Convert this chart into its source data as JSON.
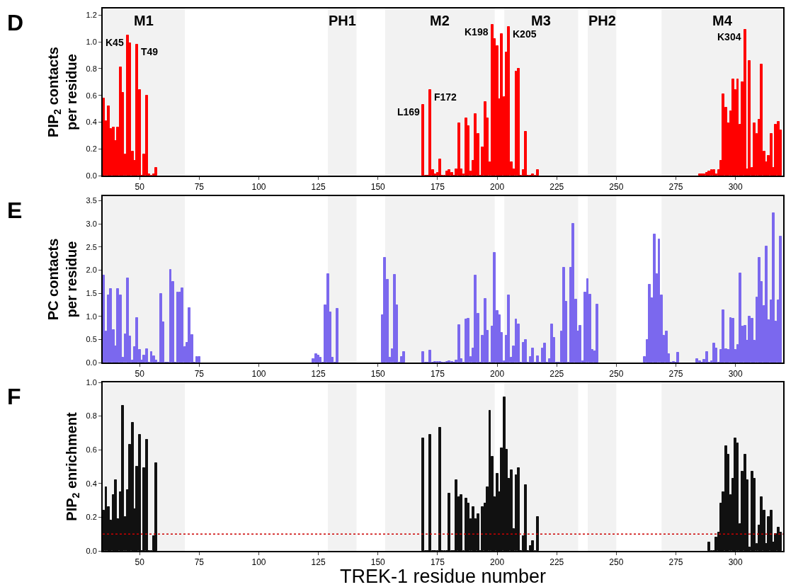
{
  "chart_data": [
    {
      "type": "bar",
      "title": "D",
      "ylabel": "PIP$_{2}$ contacts\nper residue",
      "xlim": [
        34.5,
        320
      ],
      "ylim": [
        0,
        1.25
      ],
      "xticks": [
        50,
        75,
        100,
        125,
        150,
        175,
        200,
        225,
        250,
        275,
        300
      ],
      "yticks": [
        {
          "value": 0,
          "label": "0.0"
        },
        {
          "value": 0.2,
          "label": "0.2"
        },
        {
          "value": 0.4,
          "label": "0.4"
        },
        {
          "value": 0.6,
          "label": "0.6"
        },
        {
          "value": 0.8,
          "label": "0.8"
        },
        {
          "value": 1.0,
          "label": "1.0"
        },
        {
          "value": 1.2,
          "label": "1.2"
        }
      ],
      "bands": [
        {
          "axis": "x",
          "from": 34.5,
          "to": 69,
          "label": "M1",
          "color": "#f2f2f2"
        },
        {
          "axis": "x",
          "from": 129,
          "to": 141,
          "label": "PH1",
          "color": "#f2f2f2"
        },
        {
          "axis": "x",
          "from": 153,
          "to": 199,
          "label": "M2",
          "color": "#f2f2f2"
        },
        {
          "axis": "x",
          "from": 203,
          "to": 234,
          "label": "M3",
          "color": "#f2f2f2"
        },
        {
          "axis": "x",
          "from": 238,
          "to": 250,
          "label": "PH2",
          "color": "#f2f2f2"
        },
        {
          "axis": "x",
          "from": 269,
          "to": 320,
          "label": "M4",
          "color": "#f2f2f2"
        }
      ],
      "annotations": [
        {
          "text": "K45",
          "x": 45,
          "y": 1.05
        },
        {
          "text": "T49",
          "x": 49,
          "y": 0.98
        },
        {
          "text": "L169",
          "x": 169,
          "y": 0.53
        },
        {
          "text": "F172",
          "x": 172,
          "y": 0.64
        },
        {
          "text": "K198",
          "x": 198,
          "y": 1.13
        },
        {
          "text": "K205",
          "x": 205,
          "y": 1.11
        },
        {
          "text": "K304",
          "x": 304,
          "y": 1.09
        }
      ],
      "series": [
        {
          "color": "#ff0000",
          "x": [
            35,
            36,
            37,
            38,
            39,
            40,
            41,
            42,
            43,
            44,
            45,
            46,
            47,
            48,
            49,
            50,
            51,
            52,
            53,
            54,
            55,
            56,
            57,
            169,
            170,
            171,
            172,
            173,
            174,
            175,
            176,
            177,
            178,
            179,
            180,
            181,
            182,
            183,
            184,
            185,
            186,
            187,
            188,
            189,
            190,
            191,
            192,
            193,
            194,
            195,
            196,
            197,
            198,
            199,
            200,
            201,
            202,
            203,
            204,
            205,
            206,
            207,
            208,
            209,
            210,
            211,
            212,
            213,
            214,
            215,
            216,
            217,
            285,
            286,
            287,
            288,
            289,
            290,
            291,
            292,
            293,
            294,
            295,
            296,
            297,
            298,
            299,
            300,
            301,
            302,
            303,
            304,
            305,
            306,
            307,
            308,
            309,
            310,
            311,
            312,
            313,
            314,
            315,
            316,
            317,
            318,
            319
          ],
          "values": [
            0.58,
            0.41,
            0.52,
            0.35,
            0.36,
            0.26,
            0.36,
            0.81,
            0.62,
            0.16,
            1.05,
            0.99,
            0.18,
            0.11,
            0.98,
            0.64,
            0,
            0.16,
            0.6,
            0.01,
            0,
            0.01,
            0.06,
            0.53,
            0,
            0,
            0.64,
            0.04,
            0.01,
            0.02,
            0.12,
            0,
            0,
            0.03,
            0.04,
            0.02,
            0,
            0.05,
            0.39,
            0.05,
            0.01,
            0.43,
            0.37,
            0.03,
            0.11,
            0.46,
            0.31,
            0,
            0.21,
            0.55,
            0.43,
            0.1,
            1.13,
            1.02,
            0.97,
            0.57,
            1.06,
            0.59,
            0.92,
            1.11,
            0.1,
            0.05,
            0.78,
            0.8,
            0,
            0.04,
            0.33,
            0,
            0,
            0.01,
            0,
            0.04,
            0.01,
            0.01,
            0.01,
            0.02,
            0.03,
            0.04,
            0.04,
            0.01,
            0.04,
            0.11,
            0.61,
            0.51,
            0.39,
            0.48,
            0.72,
            0.64,
            0.72,
            0.38,
            0.7,
            1.09,
            0.05,
            0.86,
            0.06,
            0.39,
            0.31,
            0.42,
            0.83,
            0.18,
            0.1,
            0.15,
            0.31,
            0.06,
            0.38,
            0.4,
            0.34
          ]
        }
      ]
    },
    {
      "type": "bar",
      "title": "E",
      "ylabel": "PC contacts\nper residue",
      "xlim": [
        34.5,
        320
      ],
      "ylim": [
        0,
        3.6
      ],
      "xticks": [
        50,
        75,
        100,
        125,
        150,
        175,
        200,
        225,
        250,
        275,
        300
      ],
      "yticks": [
        {
          "value": 0,
          "label": "0.0"
        },
        {
          "value": 0.5,
          "label": "0.5"
        },
        {
          "value": 1.0,
          "label": "1.0"
        },
        {
          "value": 1.5,
          "label": "1.5"
        },
        {
          "value": 2.0,
          "label": "2.0"
        },
        {
          "value": 2.5,
          "label": "2.5"
        },
        {
          "value": 3.0,
          "label": "3.0"
        },
        {
          "value": 3.5,
          "label": "3.5"
        }
      ],
      "bands": [
        {
          "axis": "x",
          "from": 34.5,
          "to": 69,
          "color": "#f2f2f2"
        },
        {
          "axis": "x",
          "from": 129,
          "to": 141,
          "color": "#f2f2f2"
        },
        {
          "axis": "x",
          "from": 153,
          "to": 199,
          "color": "#f2f2f2"
        },
        {
          "axis": "x",
          "from": 203,
          "to": 234,
          "color": "#f2f2f2"
        },
        {
          "axis": "x",
          "from": 238,
          "to": 250,
          "color": "#f2f2f2"
        },
        {
          "axis": "x",
          "from": 269,
          "to": 320,
          "color": "#f2f2f2"
        }
      ],
      "series": [
        {
          "color": "#7b68ee",
          "x": [
            35,
            36,
            37,
            38,
            39,
            40,
            41,
            42,
            43,
            44,
            45,
            46,
            47,
            48,
            49,
            50,
            51,
            52,
            53,
            54,
            55,
            56,
            57,
            58,
            59,
            60,
            61,
            62,
            63,
            64,
            65,
            66,
            67,
            68,
            69,
            70,
            71,
            72,
            73,
            74,
            75,
            123,
            124,
            125,
            126,
            127,
            128,
            129,
            130,
            131,
            132,
            133,
            152,
            153,
            154,
            155,
            156,
            157,
            158,
            159,
            160,
            161,
            169,
            170,
            171,
            172,
            173,
            174,
            175,
            176,
            177,
            178,
            179,
            180,
            181,
            182,
            183,
            184,
            185,
            186,
            187,
            188,
            189,
            190,
            191,
            192,
            193,
            194,
            195,
            196,
            197,
            198,
            199,
            200,
            201,
            202,
            203,
            204,
            205,
            206,
            207,
            208,
            209,
            210,
            211,
            212,
            213,
            214,
            215,
            216,
            217,
            218,
            219,
            220,
            221,
            222,
            223,
            224,
            225,
            226,
            227,
            228,
            229,
            230,
            231,
            232,
            233,
            234,
            235,
            236,
            237,
            238,
            239,
            240,
            241,
            242,
            262,
            263,
            264,
            265,
            266,
            267,
            268,
            269,
            270,
            271,
            272,
            273,
            274,
            275,
            276,
            284,
            285,
            286,
            287,
            288,
            289,
            290,
            291,
            292,
            293,
            294,
            295,
            296,
            297,
            298,
            299,
            300,
            301,
            302,
            303,
            304,
            305,
            306,
            307,
            308,
            309,
            310,
            311,
            312,
            313,
            314,
            315,
            316,
            317,
            318,
            319
          ],
          "values": [
            1.88,
            0.67,
            1.46,
            1.59,
            0.71,
            0.35,
            1.59,
            1.46,
            0.1,
            0.61,
            1.83,
            0.57,
            0.05,
            0.33,
            0.96,
            0.28,
            0.04,
            0.16,
            0.29,
            0,
            0.23,
            0.14,
            0.05,
            0,
            1.48,
            0.88,
            0,
            0,
            2.01,
            1.74,
            0,
            1.52,
            1.52,
            1.61,
            0.33,
            0.43,
            1.18,
            0.59,
            0,
            0.12,
            0.12,
            0.08,
            0.18,
            0.15,
            0.1,
            0,
            1.24,
            1.92,
            1.09,
            0.11,
            0,
            1.16,
            1.02,
            2.27,
            1.8,
            0.1,
            0.29,
            1.9,
            1.24,
            0,
            0.13,
            0.23,
            0.23,
            0,
            0,
            0.26,
            0,
            0.01,
            0.02,
            0.02,
            0,
            0,
            0.02,
            0.03,
            0.02,
            0,
            0.04,
            0.81,
            0.08,
            0,
            0.93,
            0.95,
            0.12,
            0.31,
            1.88,
            1.05,
            0,
            0.58,
            1.38,
            0.69,
            0,
            0.78,
            2.38,
            1.12,
            1.02,
            0.64,
            0.03,
            0.58,
            1.45,
            0.1,
            0.35,
            0.94,
            0.82,
            0,
            0.43,
            0.49,
            0,
            0.13,
            0.3,
            0,
            0.14,
            0,
            0.31,
            0.42,
            0,
            0.08,
            0.82,
            0.53,
            0,
            0,
            0.67,
            2.05,
            1.31,
            0,
            2.05,
            3.0,
            1.37,
            0.67,
            0.79,
            0.03,
            1.51,
            1.81,
            1.47,
            0.28,
            0.25,
            1.25,
            0.13,
            0.49,
            1.69,
            1.4,
            2.77,
            1.91,
            2.66,
            1.46,
            0.58,
            0.67,
            0.19,
            0,
            0.02,
            0,
            0.21,
            0.07,
            0.03,
            0,
            0.06,
            0.23,
            0,
            0.03,
            0.41,
            0.31,
            0,
            0.28,
            1.13,
            0.29,
            0.28,
            0.96,
            0.95,
            0.28,
            0.38,
            1.93,
            0.78,
            0.8,
            0.48,
            0.99,
            0.95,
            0.48,
            1.41,
            2.27,
            1.74,
            1.23,
            2.52,
            0.92,
            1.35,
            3.24,
            0.89,
            1.35,
            2.72
          ]
        }
      ]
    },
    {
      "type": "bar",
      "title": "F",
      "ylabel": "PIP$_{2}$ enrichment",
      "xlabel": "TREK-1 residue number",
      "xlim": [
        34.5,
        320
      ],
      "ylim": [
        0,
        1.0
      ],
      "xticks": [
        50,
        75,
        100,
        125,
        150,
        175,
        200,
        225,
        250,
        275,
        300
      ],
      "yticks": [
        {
          "value": 0,
          "label": "0.0"
        },
        {
          "value": 0.2,
          "label": "0.2"
        },
        {
          "value": 0.4,
          "label": "0.4"
        },
        {
          "value": 0.6,
          "label": "0.6"
        },
        {
          "value": 0.8,
          "label": "0.8"
        },
        {
          "value": 1.0,
          "label": "1.0"
        }
      ],
      "bands": [
        {
          "axis": "x",
          "from": 34.5,
          "to": 69,
          "color": "#f2f2f2"
        },
        {
          "axis": "x",
          "from": 129,
          "to": 141,
          "color": "#f2f2f2"
        },
        {
          "axis": "x",
          "from": 153,
          "to": 199,
          "color": "#f2f2f2"
        },
        {
          "axis": "x",
          "from": 203,
          "to": 234,
          "color": "#f2f2f2"
        },
        {
          "axis": "x",
          "from": 238,
          "to": 250,
          "color": "#f2f2f2"
        },
        {
          "axis": "x",
          "from": 269,
          "to": 320,
          "color": "#f2f2f2"
        }
      ],
      "ref_lines": [
        {
          "axis": "y",
          "value": 0.1,
          "color": "#cc0000",
          "line_style": "dotted"
        }
      ],
      "series": [
        {
          "color": "#111111",
          "x": [
            35,
            36,
            37,
            38,
            39,
            40,
            41,
            42,
            43,
            44,
            45,
            46,
            47,
            48,
            49,
            50,
            51,
            52,
            53,
            54,
            55,
            56,
            57,
            169,
            170,
            171,
            172,
            173,
            174,
            175,
            176,
            177,
            178,
            179,
            180,
            181,
            182,
            183,
            184,
            185,
            186,
            187,
            188,
            189,
            190,
            191,
            192,
            193,
            194,
            195,
            196,
            197,
            198,
            199,
            200,
            201,
            202,
            203,
            204,
            205,
            206,
            207,
            208,
            209,
            210,
            211,
            212,
            213,
            214,
            215,
            216,
            217,
            289,
            290,
            291,
            292,
            293,
            294,
            295,
            296,
            297,
            298,
            299,
            300,
            301,
            302,
            303,
            304,
            305,
            306,
            307,
            308,
            309,
            310,
            311,
            312,
            313,
            314,
            315,
            316,
            317,
            318,
            319
          ],
          "values": [
            0.24,
            0.38,
            0.26,
            0.18,
            0.33,
            0.42,
            0.19,
            0.35,
            0.86,
            0.2,
            0.36,
            0.63,
            0.76,
            0.25,
            0.5,
            0.69,
            0,
            0.49,
            0.66,
            0,
            0,
            0.09,
            0.52,
            0.67,
            0,
            0,
            0.69,
            0,
            0,
            0,
            0.73,
            0,
            0,
            0,
            0.34,
            0,
            0,
            0.42,
            0.32,
            0.33,
            0,
            0.31,
            0.28,
            0.19,
            0.26,
            0.19,
            0.22,
            0,
            0.26,
            0.28,
            0.38,
            0.83,
            0.56,
            0.32,
            0.46,
            0.35,
            0.61,
            0.91,
            0.6,
            0.43,
            0.48,
            0.13,
            0.45,
            0.49,
            0,
            0.09,
            0.39,
            0,
            0.03,
            0.06,
            0,
            0.2,
            0.05,
            0,
            0,
            0.08,
            0.11,
            0.28,
            0.35,
            0.62,
            0.57,
            0.33,
            0.43,
            0.67,
            0.64,
            0.16,
            0.47,
            0.57,
            0.42,
            0.02,
            0.47,
            0.43,
            0.04,
            0.15,
            0.32,
            0.24,
            0.04,
            0.2,
            0.24,
            0.05,
            0.1,
            0.14,
            0.11
          ]
        }
      ]
    }
  ]
}
